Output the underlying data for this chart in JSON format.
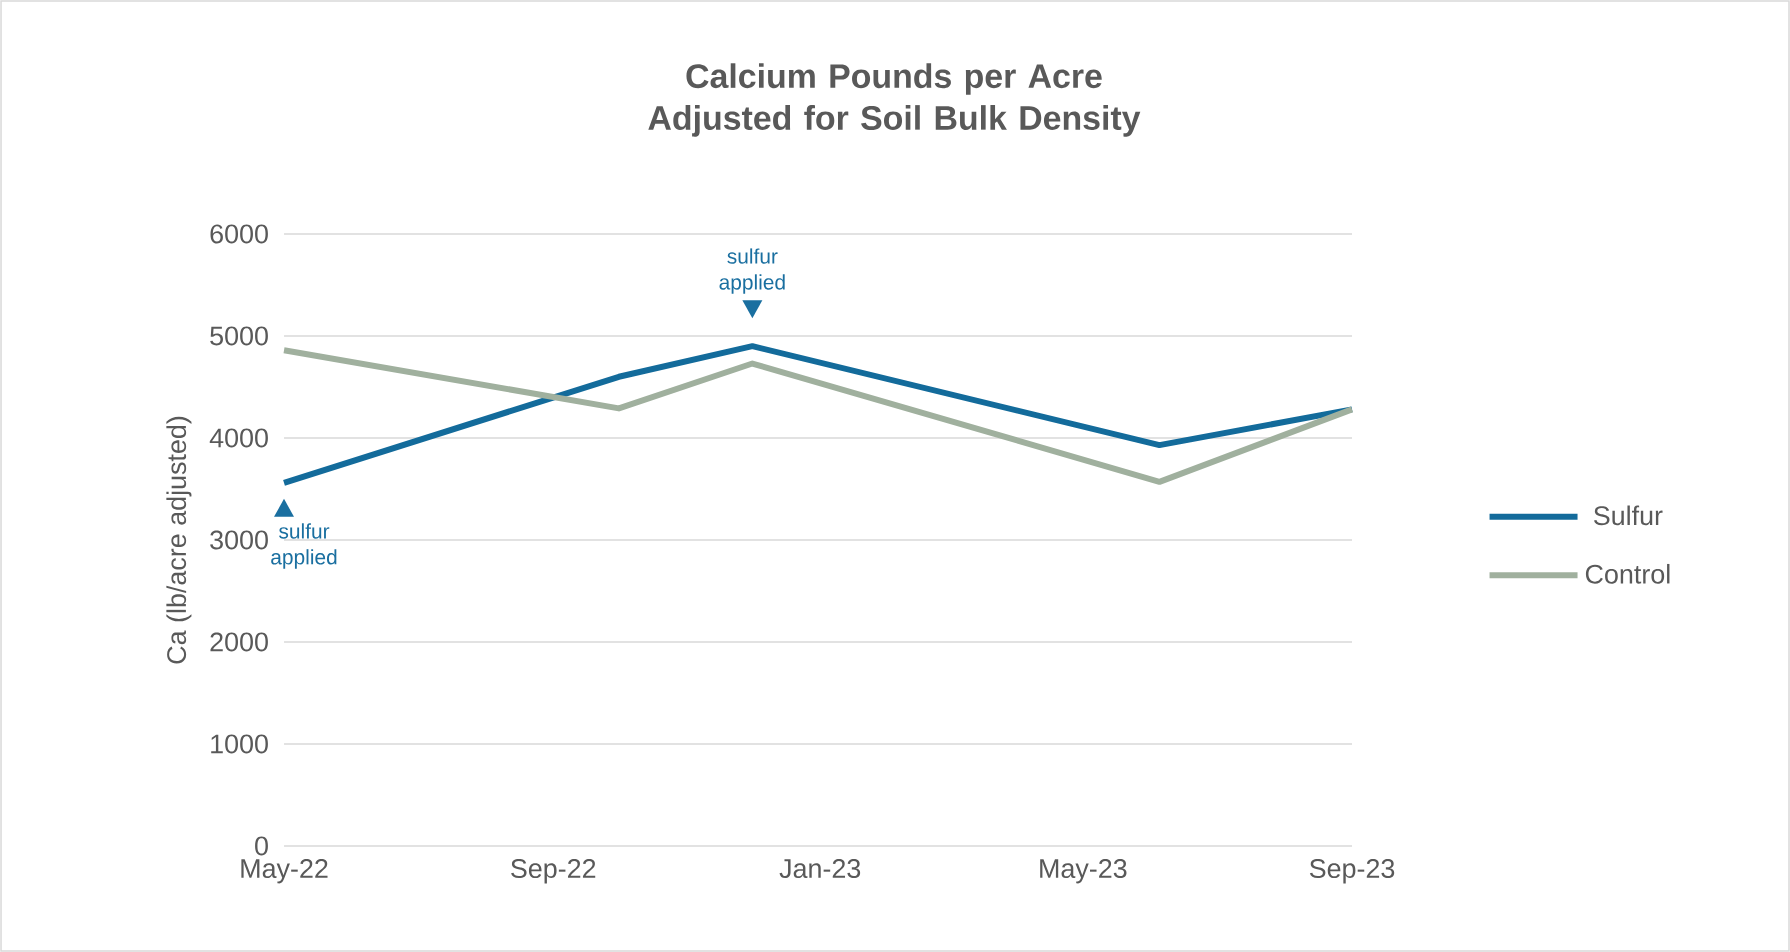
{
  "chart_data": {
    "type": "line",
    "title": "Calcium Pounds per Acre Adjusted for Soil Bulk Density",
    "ylabel": "Ca (lb/acre adjusted)",
    "x": [
      "2022-05-01",
      "2022-10-01",
      "2022-12-01",
      "2023-06-05",
      "2023-09-01"
    ],
    "series": [
      {
        "name": "Sulfur",
        "color": "#136b9b",
        "values": [
          3560,
          4600,
          4900,
          3930,
          4280
        ]
      },
      {
        "name": "Control",
        "color": "#a0b09e",
        "values": [
          4860,
          4290,
          4730,
          3570,
          4280
        ]
      }
    ],
    "xlim": [
      "2022-05-01",
      "2023-09-01"
    ],
    "xticks": [
      {
        "value": "2022-05-01",
        "label": "May-22"
      },
      {
        "value": "2022-09-01",
        "label": "Sep-22"
      },
      {
        "value": "2023-01-01",
        "label": "Jan-23"
      },
      {
        "value": "2023-05-01",
        "label": "May-23"
      },
      {
        "value": "2023-09-01",
        "label": "Sep-23"
      }
    ],
    "ylim": [
      0,
      6000
    ],
    "yticks": [
      0,
      1000,
      2000,
      3000,
      4000,
      5000,
      6000
    ],
    "annotations": [
      {
        "text": "sulfur applied",
        "x": "2022-05-01",
        "y": 3560
      },
      {
        "text": "sulfur applied",
        "x": "2022-12-01",
        "y": 4900
      }
    ],
    "grid": "y",
    "legend": "right",
    "marker": "none",
    "line_style": "solid"
  }
}
